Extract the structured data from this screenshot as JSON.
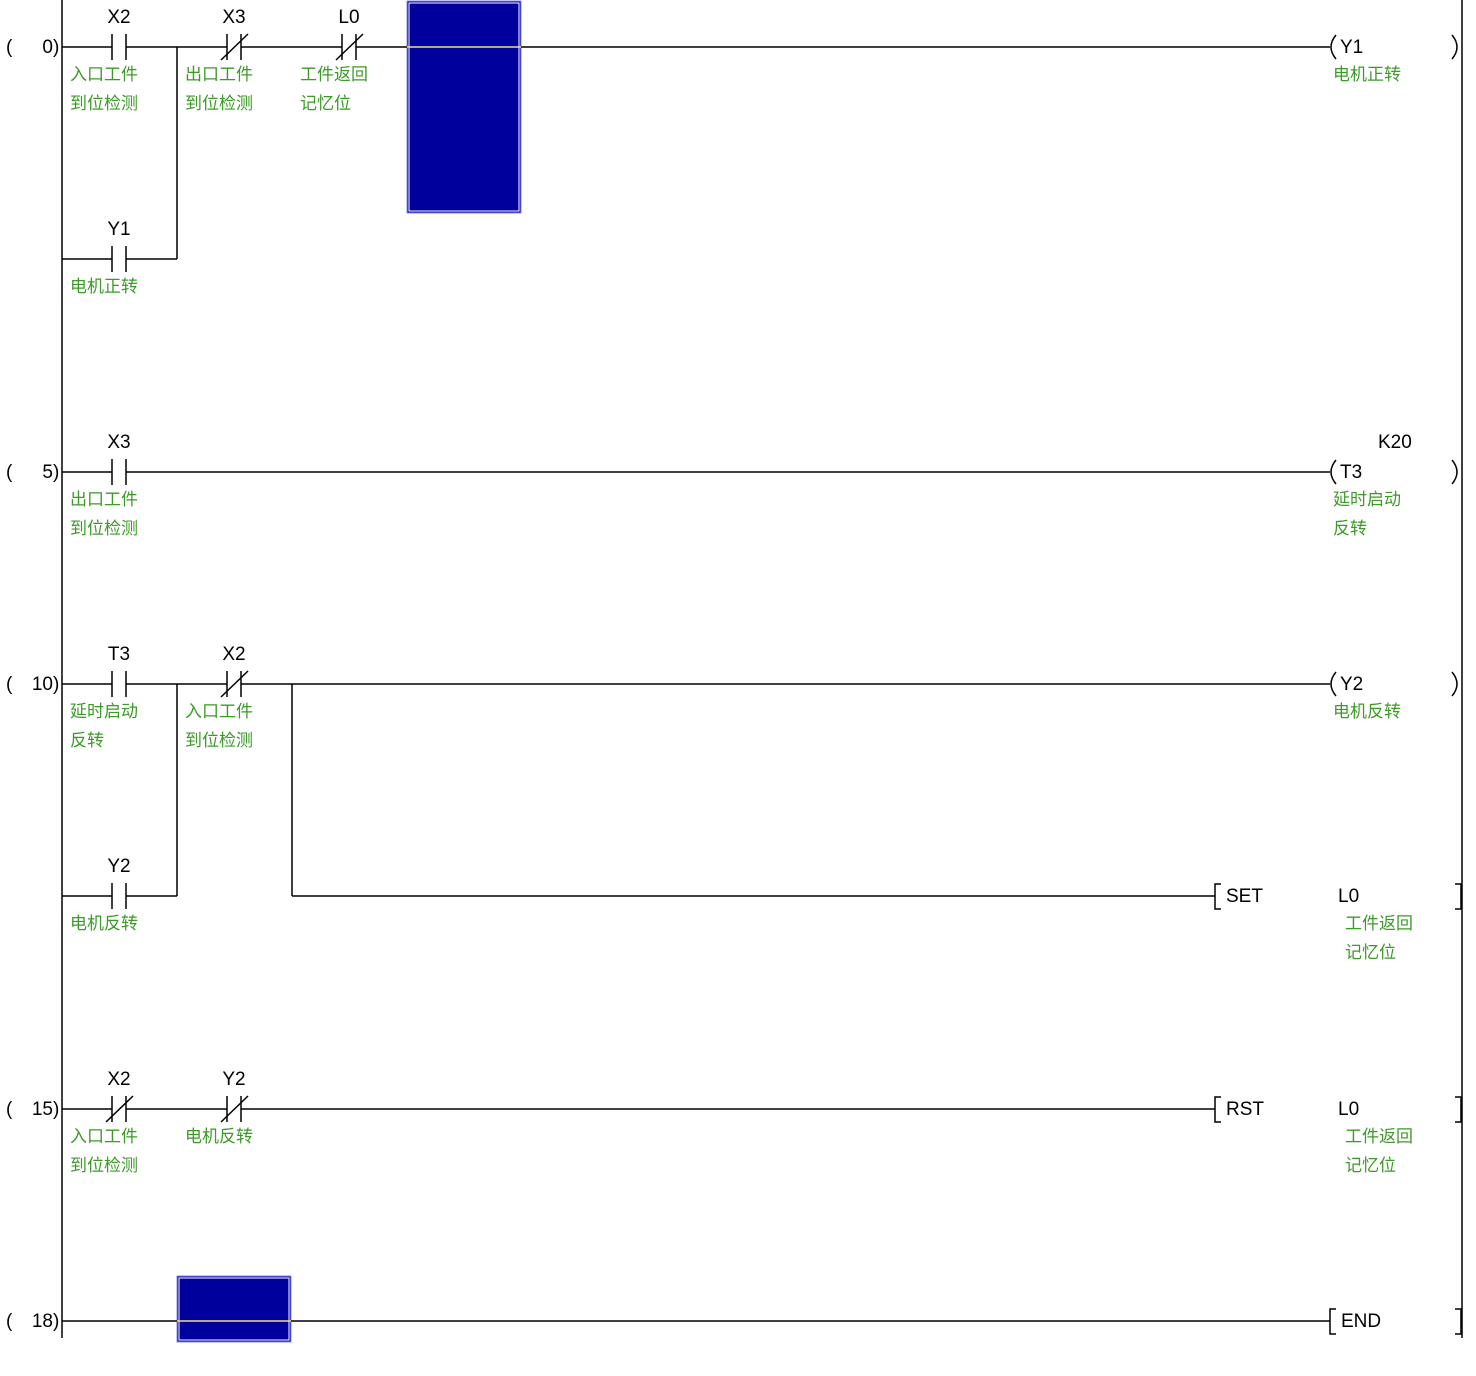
{
  "colors": {
    "wire": "#000000",
    "comment": "#3c9a28",
    "cursor": "#00009c",
    "cursor_wire": "#f0e080"
  },
  "rungs": [
    {
      "step": "0",
      "contacts": [
        {
          "label": "X2",
          "type": "normally-open",
          "comment": [
            "入口工件",
            "到位检测"
          ]
        },
        {
          "label": "X3",
          "type": "normally-closed",
          "comment": [
            "出口工件",
            "到位检测"
          ]
        },
        {
          "label": "L0",
          "type": "normally-closed",
          "comment": [
            "工件返回",
            "记忆位"
          ]
        },
        {
          "label": "Y1",
          "type": "normally-open",
          "comment": [
            "电机正转"
          ]
        }
      ],
      "outputs": [
        {
          "type": "coil",
          "label": "Y1",
          "comment": [
            "电机正转"
          ]
        }
      ]
    },
    {
      "step": "5",
      "contacts": [
        {
          "label": "X3",
          "type": "normally-open",
          "comment": [
            "出口工件",
            "到位检测"
          ]
        }
      ],
      "outputs": [
        {
          "type": "timer-coil",
          "label": "T3",
          "constant": "K20",
          "comment": [
            "延时启动",
            "反转"
          ]
        }
      ]
    },
    {
      "step": "10",
      "contacts": [
        {
          "label": "T3",
          "type": "normally-open",
          "comment": [
            "延时启动",
            "反转"
          ]
        },
        {
          "label": "X2",
          "type": "normally-closed",
          "comment": [
            "入口工件",
            "到位检测"
          ]
        },
        {
          "label": "Y2",
          "type": "normally-open",
          "comment": [
            "电机反转"
          ]
        }
      ],
      "outputs": [
        {
          "type": "coil",
          "label": "Y2",
          "comment": [
            "电机反转"
          ]
        },
        {
          "type": "instruction",
          "label": "SET",
          "operand": "L0",
          "comment": [
            "工件返回",
            "记忆位"
          ]
        }
      ]
    },
    {
      "step": "15",
      "contacts": [
        {
          "label": "X2",
          "type": "normally-closed",
          "comment": [
            "入口工件",
            "到位检测"
          ]
        },
        {
          "label": "Y2",
          "type": "normally-closed",
          "comment": [
            "电机反转"
          ]
        }
      ],
      "outputs": [
        {
          "type": "instruction",
          "label": "RST",
          "operand": "L0",
          "comment": [
            "工件返回",
            "记忆位"
          ]
        }
      ]
    },
    {
      "step": "18",
      "contacts": [],
      "outputs": [
        {
          "type": "instruction",
          "label": "END"
        }
      ]
    }
  ]
}
